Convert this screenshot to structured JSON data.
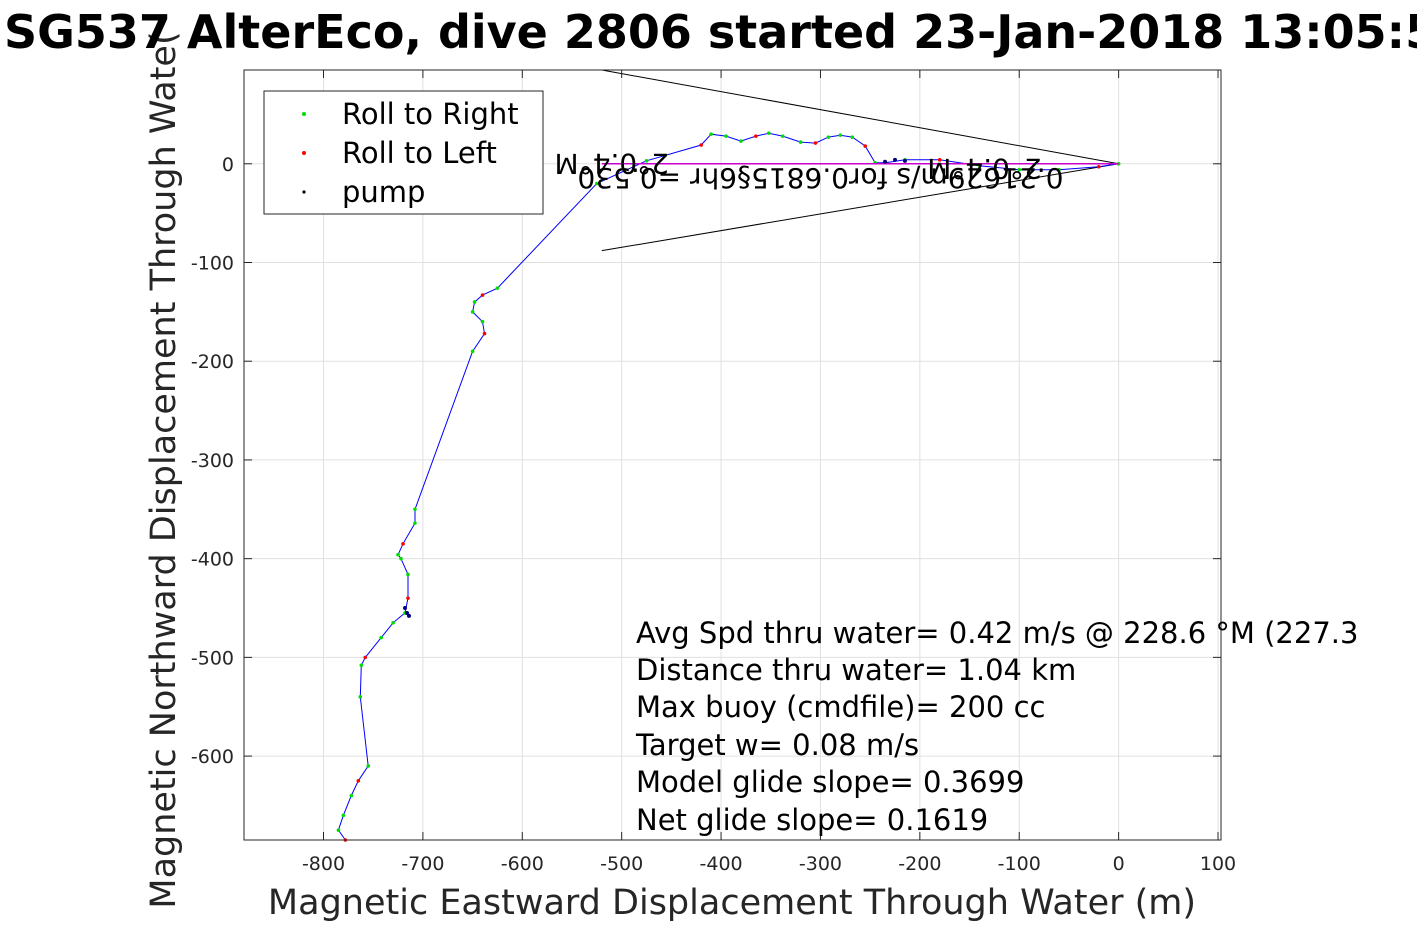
{
  "title": "SG537 AlterEco, dive 2806 started 23-Jan-2018 13:05:5",
  "chart_data": {
    "type": "line",
    "title": "SG537 AlterEco, dive 2806 started 23-Jan-2018 13:05:5",
    "xlabel": "Magnetic Eastward Displacement Through Water (m)",
    "ylabel": "Magnetic Northward Displacement Through Wate(",
    "xlim": [
      -880,
      103
    ],
    "ylim": [
      -685,
      95
    ],
    "xticks": [
      -800,
      -700,
      -600,
      -500,
      -400,
      -300,
      -200,
      -100,
      0,
      100
    ],
    "yticks": [
      0,
      -100,
      -200,
      -300,
      -400,
      -500,
      -600
    ],
    "xtick_labels": [
      "-800",
      "-700",
      "-600",
      "-500",
      "-400",
      "-300",
      "-200",
      "-100",
      "0",
      "100"
    ],
    "ytick_labels": [
      "0",
      "-100",
      "-200",
      "-300",
      "-400",
      "-500",
      "-600"
    ],
    "grid": true,
    "legend": {
      "placement": "top-left",
      "entries": [
        {
          "label": "Roll to Right",
          "color": "#00dd00"
        },
        {
          "label": "Roll to Left",
          "color": "#ff0000"
        },
        {
          "label": "pump",
          "color": "#000000"
        }
      ]
    },
    "series": [
      {
        "color": "#0000ff",
        "x": [
          0,
          -20,
          -60,
          -100,
          -140,
          -180,
          -215,
          -235,
          -245,
          -255,
          -268,
          -280,
          -292,
          -305,
          -320,
          -338,
          -352,
          -365,
          -380,
          -395,
          -410,
          -420,
          -475,
          -525,
          -625,
          -640,
          -648,
          -650,
          -640,
          -638,
          -650,
          -708,
          -708,
          -720,
          -725,
          -722,
          -715,
          -715,
          -718,
          -730,
          -742,
          -758,
          -762,
          -763,
          -755,
          -765,
          -772,
          -780,
          -785,
          -778
        ],
        "y": [
          0,
          -3,
          -6,
          -6,
          -2,
          4,
          4,
          1,
          1,
          18,
          27,
          29,
          27,
          21,
          22,
          28,
          31,
          28,
          23,
          28,
          30,
          19,
          3,
          -20,
          -126,
          -133,
          -140,
          -150,
          -160,
          -172,
          -190,
          -350,
          -364,
          -385,
          -396,
          -400,
          -416,
          -440,
          -455,
          -465,
          -480,
          -500,
          -508,
          -540,
          -610,
          -625,
          -640,
          -660,
          -675,
          -685
        ]
      },
      {
        "color": "#cc00cc",
        "x": [
          0,
          -100,
          -200,
          -300,
          -420,
          -520
        ],
        "y": [
          0,
          0,
          0,
          0,
          0,
          0
        ]
      }
    ],
    "pump_points": {
      "x": [
        -215,
        -225,
        -235,
        -716,
        -718,
        -714
      ],
      "y": [
        3,
        4,
        2,
        -455,
        -450,
        -458
      ]
    },
    "annotations_rotated": [
      {
        "text": "2°0.4°M",
        "x": -510,
        "y": 10
      },
      {
        "text": "0.21629m/s for0.6815§6hr =0.530",
        "x": -300,
        "y": -5
      },
      {
        "text": "2°0.4°M",
        "x": -135,
        "y": 5
      }
    ],
    "info_box": [
      "Avg Spd thru water=  0.42 m/s @ 228.6 °M (227.3",
      "Distance thru water=  1.04 km",
      "Max buoy (cmdfile)= 200 cc",
      "Target w= 0.08 m/s",
      "Model glide slope= 0.3699",
      "Net glide slope= 0.1619"
    ]
  }
}
